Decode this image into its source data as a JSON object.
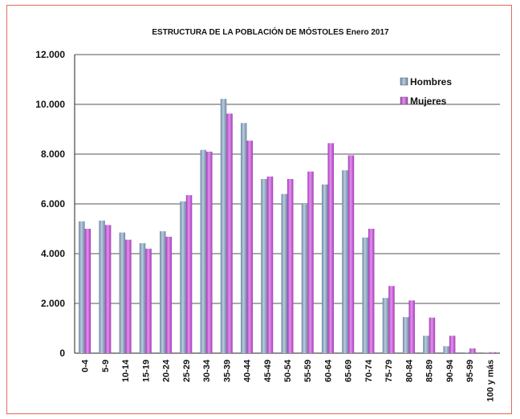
{
  "chart_data": {
    "type": "bar",
    "title": "ESTRUCTURA DE LA POBLACIÓN DE MÓSTOLES  Enero 2017",
    "xlabel": "",
    "ylabel": "",
    "ylim": [
      0,
      12000
    ],
    "y_ticks": [
      "0",
      "2.000",
      "4.000",
      "6.000",
      "8.000",
      "10.000",
      "12.000"
    ],
    "grid": true,
    "legend_position": "top-right",
    "categories": [
      "0-4",
      "5-9",
      "10-14",
      "15-19",
      "20-24",
      "25-29",
      "30-34",
      "35-39",
      "40-44",
      "45-49",
      "50-54",
      "55-59",
      "60-64",
      "65-69",
      "70-74",
      "75-79",
      "80-84",
      "85-89",
      "90-94",
      "95-99",
      "100 y más"
    ],
    "series": [
      {
        "name": "Hombres",
        "color": "#8faac0",
        "values": [
          5300,
          5330,
          4850,
          4420,
          4900,
          6100,
          8170,
          10220,
          9250,
          7000,
          6400,
          6000,
          6780,
          7350,
          4650,
          2220,
          1450,
          700,
          280,
          40,
          5
        ]
      },
      {
        "name": "Mujeres",
        "color": "#c655d6",
        "values": [
          5000,
          5150,
          4560,
          4200,
          4680,
          6350,
          8100,
          9630,
          8540,
          7100,
          7000,
          7300,
          8440,
          7950,
          5000,
          2700,
          2120,
          1430,
          700,
          190,
          40
        ]
      }
    ]
  }
}
